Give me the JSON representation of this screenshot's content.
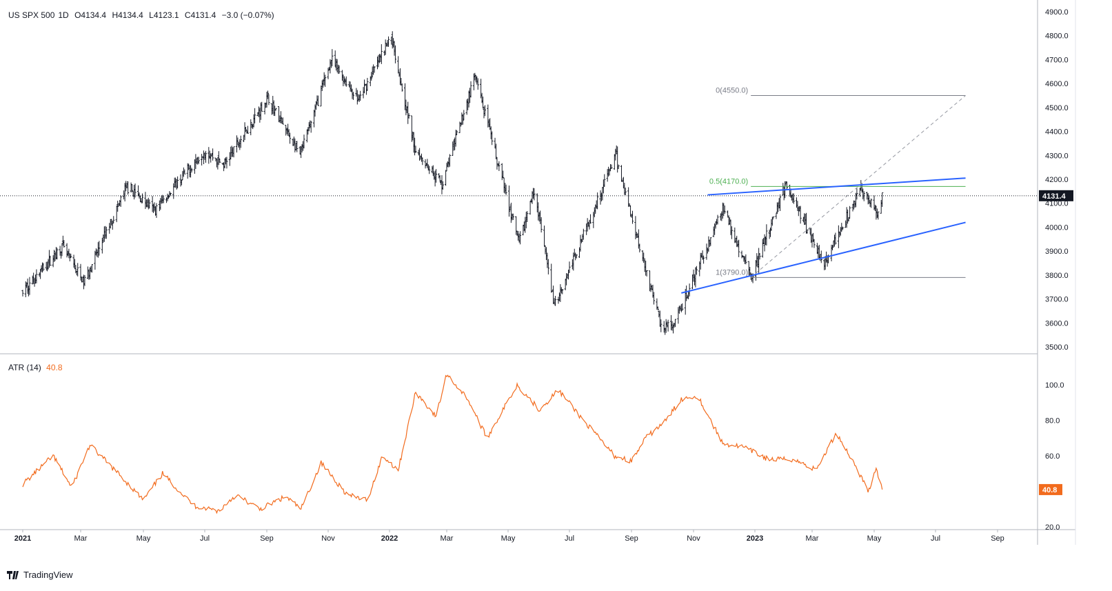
{
  "header": {
    "symbol": "US SPX 500",
    "interval": "1D",
    "open": "O4134.4",
    "high": "H4134.4",
    "low": "L4123.1",
    "close": "C4131.4",
    "change": "−3.0 (−0.07%)"
  },
  "atr_header": {
    "name": "ATR (14)",
    "value": "40.8"
  },
  "brand": {
    "name": "TradingView"
  },
  "colors": {
    "atr": "#f26b1d",
    "trendline": "#2962ff",
    "fib_level": "#4caf50",
    "price_tag": "#131722",
    "atr_tag": "#f26b1d"
  },
  "price_tag": "4131.4",
  "atr_tag": "40.8",
  "chart_data": [
    {
      "type": "candlestick",
      "title": "US SPX 500, 1D",
      "x_ticks": [
        "2021",
        "Mar",
        "May",
        "Jul",
        "Sep",
        "Nov",
        "2022",
        "Mar",
        "May",
        "Jul",
        "Sep",
        "Nov",
        "2023",
        "Mar",
        "May",
        "Jul",
        "Sep"
      ],
      "y_ticks": [
        "3500.0",
        "3600.0",
        "3700.0",
        "3800.0",
        "3900.0",
        "4000.0",
        "4100.0",
        "4200.0",
        "4300.0",
        "4400.0",
        "4500.0",
        "4600.0",
        "4700.0",
        "4800.0",
        "4900.0"
      ],
      "ylim": [
        3480,
        4920
      ],
      "series_path": [
        {
          "date": "2021-01-01",
          "value": 3730
        },
        {
          "date": "2021-02-10",
          "value": 3920
        },
        {
          "date": "2021-03-04",
          "value": 3770
        },
        {
          "date": "2021-04-15",
          "value": 4170
        },
        {
          "date": "2021-05-12",
          "value": 4070
        },
        {
          "date": "2021-07-01",
          "value": 4320
        },
        {
          "date": "2021-07-20",
          "value": 4260
        },
        {
          "date": "2021-09-02",
          "value": 4540
        },
        {
          "date": "2021-10-04",
          "value": 4300
        },
        {
          "date": "2021-11-04",
          "value": 4700
        },
        {
          "date": "2021-12-01",
          "value": 4530
        },
        {
          "date": "2022-01-03",
          "value": 4800
        },
        {
          "date": "2022-01-27",
          "value": 4330
        },
        {
          "date": "2022-02-24",
          "value": 4180
        },
        {
          "date": "2022-03-29",
          "value": 4630
        },
        {
          "date": "2022-05-12",
          "value": 3930
        },
        {
          "date": "2022-05-27",
          "value": 4160
        },
        {
          "date": "2022-06-16",
          "value": 3670
        },
        {
          "date": "2022-08-16",
          "value": 4300
        },
        {
          "date": "2022-09-30",
          "value": 3590
        },
        {
          "date": "2022-10-12",
          "value": 3580
        },
        {
          "date": "2022-11-30",
          "value": 4080
        },
        {
          "date": "2022-12-28",
          "value": 3790
        },
        {
          "date": "2023-02-02",
          "value": 4180
        },
        {
          "date": "2023-03-13",
          "value": 3850
        },
        {
          "date": "2023-04-18",
          "value": 4160
        },
        {
          "date": "2023-05-04",
          "value": 4060
        },
        {
          "date": "2023-05-09",
          "value": 4131
        }
      ],
      "last_close": 4131.4,
      "annotations": [
        {
          "label": "0(4550.0)",
          "value": 4550
        },
        {
          "label": "0.5(4170.0)",
          "value": 4170
        },
        {
          "label": "1(3790.0)",
          "value": 3790
        }
      ],
      "trendlines": [
        {
          "name": "upper",
          "from": {
            "date": "2022-11-15",
            "value": 4135
          },
          "to": {
            "date": "2023-07-31",
            "value": 4205
          }
        },
        {
          "name": "lower",
          "from": {
            "date": "2022-10-20",
            "value": 3725
          },
          "to": {
            "date": "2023-07-31",
            "value": 4020
          }
        }
      ],
      "fib_diagonal": {
        "from": {
          "date": "2022-12-28",
          "value": 3790
        },
        "to": {
          "date": "2023-07-31",
          "value": 4550
        }
      }
    },
    {
      "type": "line",
      "title": "ATR (14)",
      "y_ticks": [
        "20.0",
        "40.0",
        "60.0",
        "80.0",
        "100.0"
      ],
      "ylim": [
        20,
        110
      ],
      "series": [
        {
          "name": "ATR (14)",
          "points": [
            {
              "date": "2021-01-01",
              "value": 44
            },
            {
              "date": "2021-02-01",
              "value": 60
            },
            {
              "date": "2021-02-20",
              "value": 42
            },
            {
              "date": "2021-03-10",
              "value": 66
            },
            {
              "date": "2021-04-10",
              "value": 48
            },
            {
              "date": "2021-05-01",
              "value": 35
            },
            {
              "date": "2021-05-20",
              "value": 50
            },
            {
              "date": "2021-06-20",
              "value": 32
            },
            {
              "date": "2021-07-15",
              "value": 29
            },
            {
              "date": "2021-08-01",
              "value": 38
            },
            {
              "date": "2021-08-25",
              "value": 30
            },
            {
              "date": "2021-09-20",
              "value": 37
            },
            {
              "date": "2021-10-05",
              "value": 30
            },
            {
              "date": "2021-10-25",
              "value": 56
            },
            {
              "date": "2021-11-20",
              "value": 38
            },
            {
              "date": "2021-12-10",
              "value": 35
            },
            {
              "date": "2021-12-25",
              "value": 60
            },
            {
              "date": "2022-01-10",
              "value": 52
            },
            {
              "date": "2022-01-28",
              "value": 96
            },
            {
              "date": "2022-02-18",
              "value": 82
            },
            {
              "date": "2022-03-01",
              "value": 106
            },
            {
              "date": "2022-03-22",
              "value": 92
            },
            {
              "date": "2022-04-10",
              "value": 70
            },
            {
              "date": "2022-05-10",
              "value": 100
            },
            {
              "date": "2022-06-01",
              "value": 86
            },
            {
              "date": "2022-06-20",
              "value": 97
            },
            {
              "date": "2022-07-15",
              "value": 80
            },
            {
              "date": "2022-08-15",
              "value": 60
            },
            {
              "date": "2022-09-01",
              "value": 57
            },
            {
              "date": "2022-09-15",
              "value": 70
            },
            {
              "date": "2022-10-05",
              "value": 80
            },
            {
              "date": "2022-10-20",
              "value": 92
            },
            {
              "date": "2022-11-05",
              "value": 94
            },
            {
              "date": "2022-11-30",
              "value": 67
            },
            {
              "date": "2022-12-20",
              "value": 65
            },
            {
              "date": "2023-01-15",
              "value": 58
            },
            {
              "date": "2023-02-10",
              "value": 58
            },
            {
              "date": "2023-03-05",
              "value": 52
            },
            {
              "date": "2023-03-25",
              "value": 73
            },
            {
              "date": "2023-04-15",
              "value": 52
            },
            {
              "date": "2023-04-25",
              "value": 40
            },
            {
              "date": "2023-05-03",
              "value": 52
            },
            {
              "date": "2023-05-09",
              "value": 41
            }
          ]
        }
      ]
    }
  ]
}
